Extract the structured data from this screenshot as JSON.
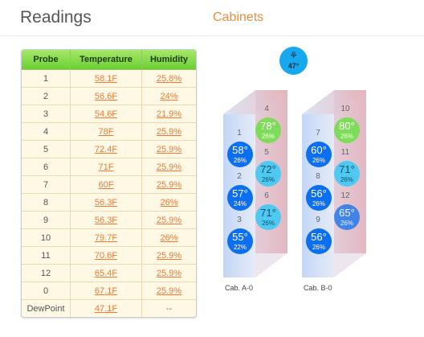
{
  "header": {
    "title": "Readings",
    "tab_cabinets": "Cabinets"
  },
  "table": {
    "headers": [
      "Probe",
      "Temperature",
      "Humidity"
    ],
    "rows": [
      {
        "probe": "1",
        "temp": "58.1F",
        "hum": "25.8%"
      },
      {
        "probe": "2",
        "temp": "56.6F",
        "hum": "24%"
      },
      {
        "probe": "3",
        "temp": "54.6F",
        "hum": "21.9%"
      },
      {
        "probe": "4",
        "temp": "78F",
        "hum": "25.9%"
      },
      {
        "probe": "5",
        "temp": "72.4F",
        "hum": "25.9%"
      },
      {
        "probe": "6",
        "temp": "71F",
        "hum": "25.9%"
      },
      {
        "probe": "7",
        "temp": "60F",
        "hum": "25.9%"
      },
      {
        "probe": "8",
        "temp": "56.3F",
        "hum": "26%"
      },
      {
        "probe": "9",
        "temp": "56.3F",
        "hum": "25.9%"
      },
      {
        "probe": "10",
        "temp": "79.7F",
        "hum": "26%"
      },
      {
        "probe": "11",
        "temp": "70.6F",
        "hum": "25.9%"
      },
      {
        "probe": "12",
        "temp": "65.4F",
        "hum": "25.9%"
      },
      {
        "probe": "0",
        "temp": "67.1F",
        "hum": "25.9%"
      },
      {
        "probe": "DewPoint",
        "temp": "47.1F",
        "hum": "--"
      }
    ]
  },
  "fan": {
    "icon": "fan-icon",
    "humidity": "47°"
  },
  "cabinets": [
    {
      "label": "Cab. A-0",
      "front": [
        {
          "num": "1",
          "temp": "58°",
          "hum": "26%"
        },
        {
          "num": "2",
          "temp": "57°",
          "hum": "24%"
        },
        {
          "num": "3",
          "temp": "55°",
          "hum": "22%"
        }
      ],
      "back": [
        {
          "num": "4",
          "temp": "78°",
          "hum": "26%"
        },
        {
          "num": "5",
          "temp": "72°",
          "hum": "26%"
        },
        {
          "num": "6",
          "temp": "71°",
          "hum": "26%"
        }
      ]
    },
    {
      "label": "Cab. B-0",
      "front": [
        {
          "num": "7",
          "temp": "60°",
          "hum": "26%"
        },
        {
          "num": "8",
          "temp": "56°",
          "hum": "26%"
        },
        {
          "num": "9",
          "temp": "56°",
          "hum": "26%"
        }
      ],
      "back": [
        {
          "num": "10",
          "temp": "80°",
          "hum": "26%"
        },
        {
          "num": "11",
          "temp": "71°",
          "hum": "26%"
        },
        {
          "num": "12",
          "temp": "65°",
          "hum": "26%"
        }
      ]
    }
  ],
  "colors": {
    "cold": "#0b6ff0",
    "mid": "#4fc9f2",
    "warm": "#7fdc5a",
    "hot_side": "#e79ba0",
    "cold_side": "#a9c4ef"
  }
}
